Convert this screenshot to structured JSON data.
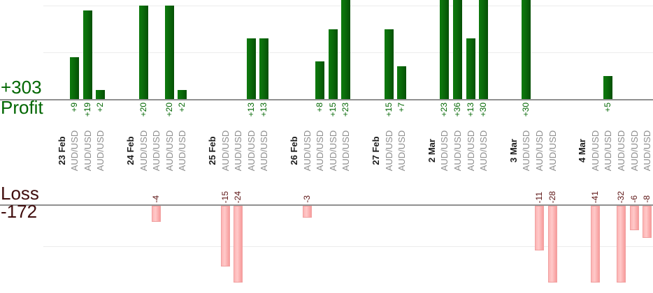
{
  "chart_data": {
    "type": "bar",
    "orientation": "vertical",
    "grid": true,
    "profit_axis": {
      "label": "Profit",
      "total_label": "+303",
      "gridlines": [
        10,
        20
      ],
      "ylim": [
        0,
        21
      ]
    },
    "loss_axis": {
      "label": "Loss",
      "total_label": "-172",
      "gridlines": [
        10
      ],
      "ylim": [
        0,
        -19
      ]
    },
    "groups": [
      {
        "date": "23 Feb",
        "trades": [
          {
            "symbol": "AUD/USD",
            "value": 9,
            "label": "+9"
          },
          {
            "symbol": "AUD/USD",
            "value": 19,
            "label": "+19"
          },
          {
            "symbol": "AUD/USD",
            "value": 2,
            "label": "+2"
          }
        ]
      },
      {
        "date": "24 Feb",
        "trades": [
          {
            "symbol": "AUD/USD",
            "value": 20,
            "label": "+20"
          },
          {
            "symbol": "AUD/USD",
            "value": -4,
            "label": "-4"
          },
          {
            "symbol": "AUD/USD",
            "value": 20,
            "label": "+20"
          },
          {
            "symbol": "AUD/USD",
            "value": 2,
            "label": "+2"
          }
        ]
      },
      {
        "date": "25 Feb",
        "trades": [
          {
            "symbol": "AUD/USD",
            "value": -15,
            "label": "-15"
          },
          {
            "symbol": "AUD/USD",
            "value": -24,
            "label": "-24"
          },
          {
            "symbol": "AUD/USD",
            "value": 13,
            "label": "+13"
          },
          {
            "symbol": "AUD/USD",
            "value": 13,
            "label": "+13"
          }
        ]
      },
      {
        "date": "26 Feb",
        "trades": [
          {
            "symbol": "AUD/USD",
            "value": -3,
            "label": "-3"
          },
          {
            "symbol": "AUD/USD",
            "value": 8,
            "label": "+8"
          },
          {
            "symbol": "AUD/USD",
            "value": 15,
            "label": "+15"
          },
          {
            "symbol": "AUD/USD",
            "value": 23,
            "label": "+23"
          }
        ]
      },
      {
        "date": "27 Feb",
        "trades": [
          {
            "symbol": "AUD/USD",
            "value": 15,
            "label": "+15"
          },
          {
            "symbol": "AUD/USD",
            "value": 7,
            "label": "+7"
          }
        ]
      },
      {
        "date": "2 Mar",
        "trades": [
          {
            "symbol": "AUD/USD",
            "value": 23,
            "label": "+23"
          },
          {
            "symbol": "AUD/USD",
            "value": 36,
            "label": "+36"
          },
          {
            "symbol": "AUD/USD",
            "value": 13,
            "label": "+13"
          },
          {
            "symbol": "AUD/USD",
            "value": 30,
            "label": "+30"
          }
        ]
      },
      {
        "date": "3 Mar",
        "trades": [
          {
            "symbol": "AUD/USD",
            "value": 30,
            "label": "+30"
          },
          {
            "symbol": "AUD/USD",
            "value": -11,
            "label": "-11"
          },
          {
            "symbol": "AUD/USD",
            "value": -28,
            "label": "-28"
          }
        ]
      },
      {
        "date": "4 Mar",
        "trades": [
          {
            "symbol": "AUD/USD",
            "value": -41,
            "label": "-41"
          },
          {
            "symbol": "AUD/USD",
            "value": 5,
            "label": "+5"
          },
          {
            "symbol": "AUD/USD",
            "value": -32,
            "label": "-32"
          },
          {
            "symbol": "AUD/USD",
            "value": -6,
            "label": "-6"
          },
          {
            "symbol": "AUD/USD",
            "value": -8,
            "label": "-8"
          }
        ]
      }
    ]
  },
  "colors": {
    "background": "#ffffff",
    "profit_bar": "#0a6b0a",
    "loss_bar": "#ffc0c0",
    "profit_text": "#006600",
    "loss_text": "#400d0d",
    "loss_value_text": "#5d1414",
    "symbol_text": "#8e8e8e",
    "date_text": "#1c1c1c",
    "axis_line": "#909090",
    "gridline": "#ececec"
  }
}
